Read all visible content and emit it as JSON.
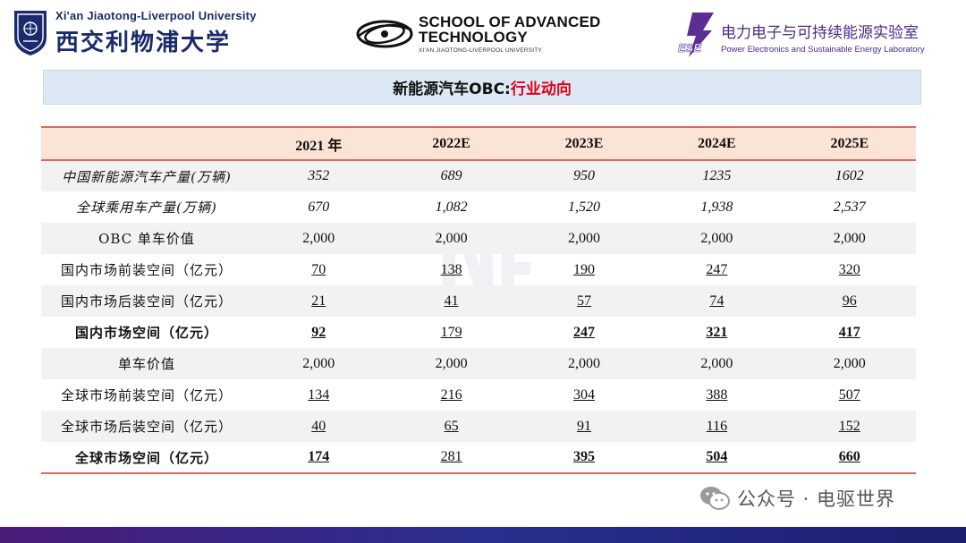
{
  "header": {
    "xjtlu_en": "Xi'an Jiaotong-Liverpool University",
    "xjtlu_cn": "西交利物浦大学",
    "sat_line1": "SCHOOL OF ADVANCED",
    "sat_line2": "TECHNOLOGY",
    "sat_line3": "XI'AN JIAOTONG-LIVERPOOL UNIVERSITY",
    "ese_logo_text": "ESE",
    "ese_cn": "电力电子与可持续能源实验室",
    "ese_en": "Power Electronics and Sustainable Energy Laboratory"
  },
  "title": {
    "main": "新能源汽车OBC:",
    "highlight": "行业动向"
  },
  "table": {
    "columns": [
      "2021 年",
      "2022E",
      "2023E",
      "2024E",
      "2025E"
    ],
    "rows": [
      {
        "label": "中国新能源汽车产量(万辆)",
        "values": [
          "352",
          "689",
          "950",
          "1235",
          "1602"
        ]
      },
      {
        "label": "全球乘用车产量(万辆)",
        "values": [
          "670",
          "1,082",
          "1,520",
          "1,938",
          "2,537"
        ]
      },
      {
        "label": "OBC 单车价值",
        "values": [
          "2,000",
          "2,000",
          "2,000",
          "2,000",
          "2,000"
        ]
      },
      {
        "label": "国内市场前装空间（亿元）",
        "values": [
          "70",
          "138",
          "190",
          "247",
          "320"
        ]
      },
      {
        "label": "国内市场后装空间（亿元）",
        "values": [
          "21",
          "41",
          "57",
          "74",
          "96"
        ]
      },
      {
        "label": "国内市场空间（亿元）",
        "values": [
          "92",
          "179",
          "247",
          "321",
          "417"
        ]
      },
      {
        "label": "单车价值",
        "values": [
          "2,000",
          "2,000",
          "2,000",
          "2,000",
          "2,000"
        ]
      },
      {
        "label": "全球市场前装空间（亿元）",
        "values": [
          "134",
          "216",
          "304",
          "388",
          "507"
        ]
      },
      {
        "label": "全球市场后装空间（亿元）",
        "values": [
          "40",
          "65",
          "91",
          "116",
          "152"
        ]
      },
      {
        "label": "全球市场空间（亿元）",
        "values": [
          "174",
          "281",
          "395",
          "504",
          "660"
        ]
      }
    ]
  },
  "footer": {
    "wechat_text": "公众号 · 电驱世界"
  },
  "colors": {
    "title_highlight": "#e0001a",
    "header_row_bg": "#fbe4d6",
    "rule_color": "#d86b5a",
    "bottom_bar": "#2a2f8f"
  }
}
